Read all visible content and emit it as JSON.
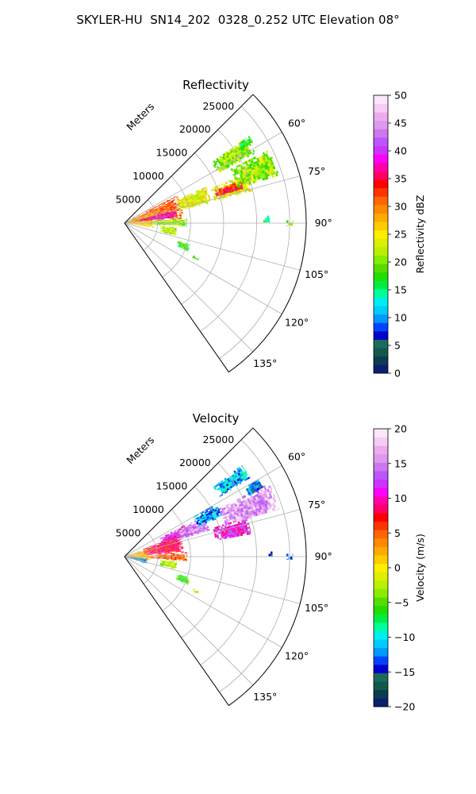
{
  "figure": {
    "title": "SKYLER-HU  SN14_202  0328_0.252 UTC Elevation 08°"
  },
  "chart_data": [
    {
      "type": "heatmap",
      "subtype": "polar-sector (radar PPI)",
      "title": "Reflectivity",
      "radial_label": "Meters",
      "radial_ticks": [
        5000,
        10000,
        15000,
        20000,
        25000
      ],
      "radial_tick_labels": [
        "5000",
        "10000",
        "15000",
        "20000",
        "25000"
      ],
      "r_range": [
        0,
        27500
      ],
      "angle_range_deg": [
        45,
        145
      ],
      "angle_ticks": [
        "60°",
        "75°",
        "90°",
        "105°",
        "120°",
        "135°"
      ],
      "grid": true,
      "colorbar": {
        "label": "Reflectivity dBZ",
        "range": [
          0,
          50
        ],
        "ticks": [
          "0",
          "5",
          "10",
          "15",
          "20",
          "25",
          "30",
          "35",
          "40",
          "45",
          "50"
        ],
        "colors": [
          "#0a1f6e",
          "#0d3b4f",
          "#0f5a4a",
          "#1b6b5a",
          "#0000cc",
          "#0044ff",
          "#0099ff",
          "#00ccff",
          "#00eeee",
          "#00ff99",
          "#00ee44",
          "#22dd00",
          "#55dd00",
          "#88ee00",
          "#bbee00",
          "#ddee00",
          "#ffee00",
          "#ffcc00",
          "#ffaa00",
          "#ff8800",
          "#ff6600",
          "#ff3300",
          "#ff0000",
          "#ff0066",
          "#ff00aa",
          "#ff00ff",
          "#cc33ff",
          "#bb55ff",
          "#cc77ee",
          "#dd99ee",
          "#eeaaee",
          "#f5ccf5",
          "#fbe6fb"
        ]
      },
      "echoes": [
        {
          "r0": 0,
          "r1": 9000,
          "a0": 62,
          "a1": 86,
          "value": 31
        },
        {
          "r0": 0,
          "r1": 4500,
          "a0": 70,
          "a1": 100,
          "value": 26
        },
        {
          "r0": 1500,
          "r1": 8000,
          "a0": 75,
          "a1": 84,
          "value": 38
        },
        {
          "r0": 8500,
          "r1": 13500,
          "a0": 66,
          "a1": 77,
          "value": 24
        },
        {
          "r0": 14000,
          "r1": 20000,
          "a0": 68,
          "a1": 76,
          "value": 24
        },
        {
          "r0": 14500,
          "r1": 19000,
          "a0": 70,
          "a1": 74,
          "value": 34
        },
        {
          "r0": 18000,
          "r1": 24500,
          "a0": 63,
          "a1": 73,
          "value": 21
        },
        {
          "r0": 16000,
          "r1": 22500,
          "a0": 55,
          "a1": 62,
          "value": 21
        },
        {
          "r0": 21000,
          "r1": 23000,
          "a0": 55,
          "a1": 58,
          "value": 18
        },
        {
          "r0": 4000,
          "r1": 9500,
          "a0": 86,
          "a1": 93,
          "value": 20
        },
        {
          "r0": 5500,
          "r1": 8000,
          "a0": 94,
          "a1": 104,
          "value": 22
        },
        {
          "r0": 8500,
          "r1": 10500,
          "a0": 108,
          "a1": 114,
          "value": 18
        },
        {
          "r0": 11500,
          "r1": 12500,
          "a0": 115,
          "a1": 117,
          "value": 16
        },
        {
          "r0": 21000,
          "r1": 22000,
          "a0": 87,
          "a1": 90,
          "value": 15
        },
        {
          "r0": 24500,
          "r1": 25500,
          "a0": 89,
          "a1": 91,
          "value": 20
        }
      ]
    },
    {
      "type": "heatmap",
      "subtype": "polar-sector (radar PPI)",
      "title": "Velocity",
      "radial_label": "Meters",
      "radial_ticks": [
        5000,
        10000,
        15000,
        20000,
        25000
      ],
      "radial_tick_labels": [
        "5000",
        "10000",
        "15000",
        "20000",
        "25000"
      ],
      "r_range": [
        0,
        27500
      ],
      "angle_range_deg": [
        45,
        145
      ],
      "angle_ticks": [
        "60°",
        "75°",
        "90°",
        "105°",
        "120°",
        "135°"
      ],
      "grid": true,
      "colorbar": {
        "label": "Velocity (m/s)",
        "range": [
          -20,
          20
        ],
        "ticks": [
          "−20",
          "−15",
          "−10",
          "−5",
          "0",
          "5",
          "10",
          "15",
          "20"
        ],
        "colors": [
          "#0a1f6e",
          "#0d3b4f",
          "#0f5a4a",
          "#1b6b5a",
          "#0000cc",
          "#0044ff",
          "#0099ff",
          "#00ccff",
          "#00eeee",
          "#00ff99",
          "#00ee44",
          "#22dd00",
          "#55dd00",
          "#88ee00",
          "#bbee00",
          "#ddee00",
          "#ffee00",
          "#ffcc00",
          "#ffaa00",
          "#ff8800",
          "#ff6600",
          "#ff3300",
          "#ff0000",
          "#ff0066",
          "#ff00aa",
          "#ff00ff",
          "#cc33ff",
          "#bb55ff",
          "#cc77ee",
          "#dd99ee",
          "#eeaaee",
          "#f5ccf5",
          "#fbe6fb"
        ]
      },
      "echoes": [
        {
          "r0": 0,
          "r1": 4000,
          "a0": 70,
          "a1": 100,
          "value": 2
        },
        {
          "r0": 3000,
          "r1": 9000,
          "a0": 68,
          "a1": 86,
          "value": 8
        },
        {
          "r0": 6000,
          "r1": 10500,
          "a0": 62,
          "a1": 72,
          "value": 11
        },
        {
          "r0": 8500,
          "r1": 13500,
          "a0": 63,
          "a1": 73,
          "value": 15
        },
        {
          "r0": 12000,
          "r1": 16000,
          "a0": 60,
          "a1": 68,
          "value": -12
        },
        {
          "r0": 14000,
          "r1": 19500,
          "a0": 72,
          "a1": 80,
          "value": 11
        },
        {
          "r0": 16000,
          "r1": 24500,
          "a0": 63,
          "a1": 73,
          "value": 16
        },
        {
          "r0": 17000,
          "r1": 22500,
          "a0": 52,
          "a1": 58,
          "value": -11
        },
        {
          "r0": 21000,
          "r1": 23500,
          "a0": 60,
          "a1": 64,
          "value": -13
        },
        {
          "r0": 0,
          "r1": 3500,
          "a0": 95,
          "a1": 108,
          "value": -12
        },
        {
          "r0": 4000,
          "r1": 9500,
          "a0": 86,
          "a1": 94,
          "value": 5
        },
        {
          "r0": 5500,
          "r1": 8000,
          "a0": 95,
          "a1": 104,
          "value": -3
        },
        {
          "r0": 8500,
          "r1": 10500,
          "a0": 108,
          "a1": 114,
          "value": -6
        },
        {
          "r0": 11500,
          "r1": 12500,
          "a0": 115,
          "a1": 117,
          "value": -2
        },
        {
          "r0": 21500,
          "r1": 22500,
          "a0": 88,
          "a1": 90,
          "value": -14
        },
        {
          "r0": 24500,
          "r1": 25500,
          "a0": 89,
          "a1": 91,
          "value": -14
        }
      ]
    }
  ]
}
